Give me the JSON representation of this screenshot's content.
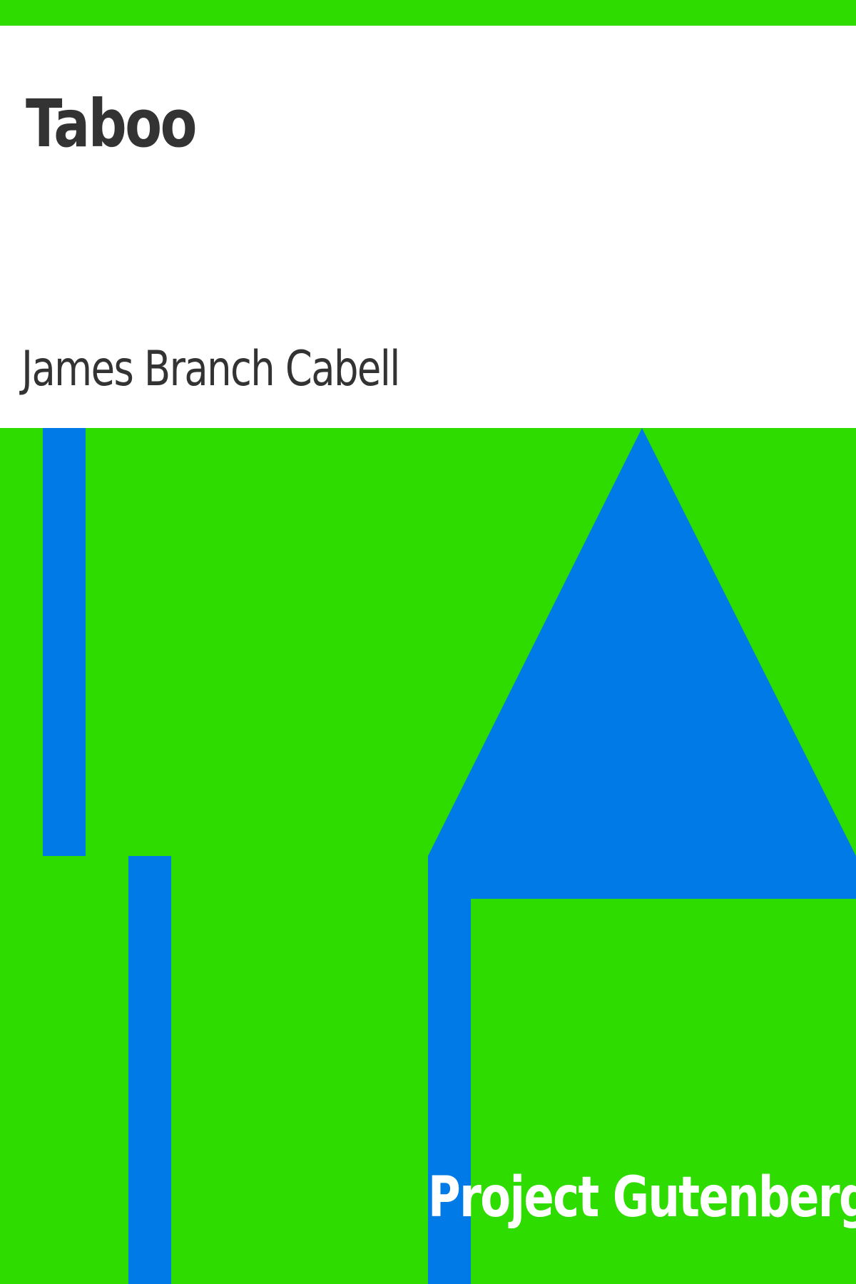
{
  "book": {
    "title": "Taboo",
    "author": "James Branch Cabell",
    "publisher": "Project Gutenberg"
  },
  "colors": {
    "background": "#2edc00",
    "panel": "#ffffff",
    "text": "#333333",
    "shape": "#007ae6",
    "publisher_text": "#ffffff"
  }
}
